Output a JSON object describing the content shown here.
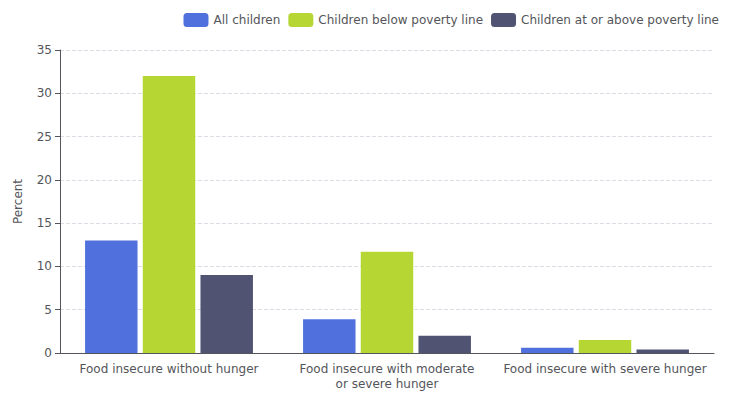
{
  "chart_data": {
    "type": "bar",
    "categories": [
      "Food insecure without hunger",
      "Food insecure with moderate\nor severe hunger",
      "Food insecure with severe hunger"
    ],
    "series": [
      {
        "name": "All children",
        "values": [
          13.0,
          3.9,
          0.6
        ]
      },
      {
        "name": "Children below poverty line",
        "values": [
          32.0,
          11.7,
          1.5
        ]
      },
      {
        "name": "Children at or above poverty line",
        "values": [
          9.0,
          2.0,
          0.4
        ]
      }
    ],
    "ylabel": "Percent",
    "ylim": [
      0,
      35
    ],
    "yticks": [
      0,
      5,
      10,
      15,
      20,
      25,
      30,
      35
    ],
    "grid": true,
    "legend": "upper right"
  }
}
